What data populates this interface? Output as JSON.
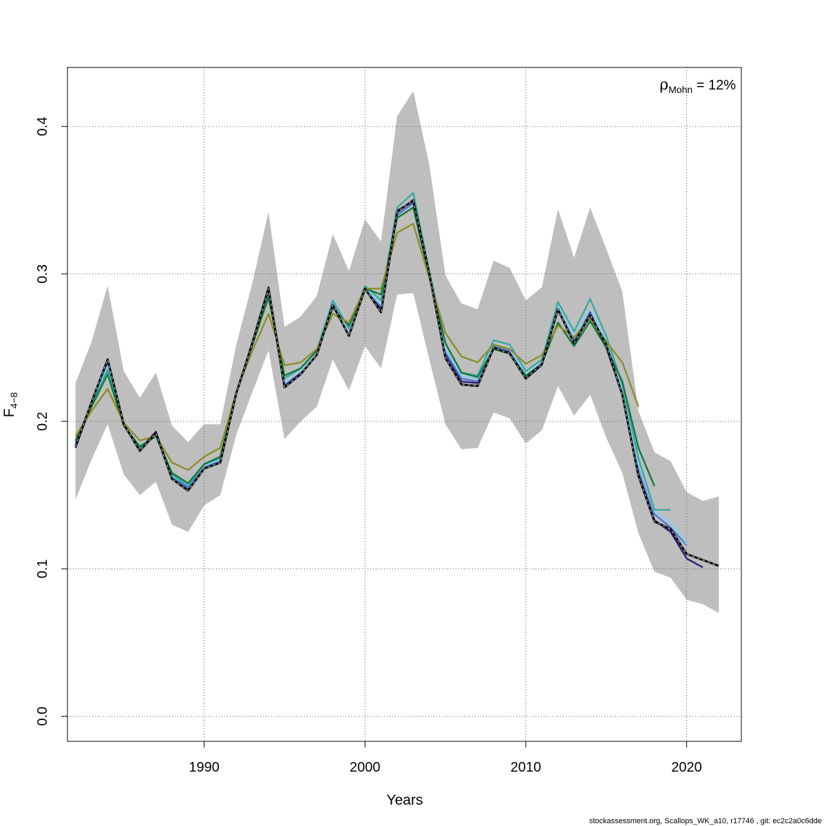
{
  "chart_data": {
    "type": "line",
    "xlabel": "Years",
    "ylabel_main": "F",
    "ylabel_sub": "4−8",
    "xlim": [
      1981.5,
      2023.4
    ],
    "ylim": [
      -0.017,
      0.44
    ],
    "x_ticks": [
      1990,
      2000,
      2010,
      2020
    ],
    "y_ticks": [
      0.0,
      0.1,
      0.2,
      0.3,
      0.4
    ],
    "y_tick_labels": [
      "0.0",
      "0.1",
      "0.2",
      "0.3",
      "0.4"
    ],
    "grid": true,
    "annotation": {
      "symbol": "ρ",
      "subscript": "Mohn",
      "text": " = 12%",
      "placement": "top-right"
    },
    "footer": "stockassessment.org, Scallops_WK_a10, r17746 , git: ec2c2a0c6dde",
    "band": {
      "color": "#bebebe",
      "x": [
        1982,
        1983,
        1984,
        1985,
        1986,
        1987,
        1988,
        1989,
        1990,
        1991,
        1992,
        1993,
        1994,
        1995,
        1996,
        1997,
        1998,
        1999,
        2000,
        2001,
        2002,
        2003,
        2004,
        2005,
        2006,
        2007,
        2008,
        2009,
        2010,
        2011,
        2012,
        2013,
        2014,
        2015,
        2016,
        2017,
        2018,
        2019,
        2020,
        2021,
        2022
      ],
      "upper": [
        0.226,
        0.254,
        0.292,
        0.234,
        0.216,
        0.233,
        0.197,
        0.186,
        0.198,
        0.198,
        0.252,
        0.294,
        0.342,
        0.264,
        0.271,
        0.285,
        0.327,
        0.302,
        0.337,
        0.322,
        0.407,
        0.424,
        0.374,
        0.299,
        0.28,
        0.276,
        0.309,
        0.304,
        0.282,
        0.291,
        0.344,
        0.311,
        0.345,
        0.317,
        0.288,
        0.207,
        0.179,
        0.173,
        0.152,
        0.146,
        0.149
      ],
      "lower": [
        0.147,
        0.174,
        0.198,
        0.164,
        0.15,
        0.159,
        0.13,
        0.125,
        0.143,
        0.15,
        0.191,
        0.22,
        0.248,
        0.188,
        0.2,
        0.21,
        0.242,
        0.221,
        0.251,
        0.236,
        0.286,
        0.287,
        0.242,
        0.198,
        0.181,
        0.182,
        0.206,
        0.202,
        0.185,
        0.194,
        0.224,
        0.204,
        0.218,
        0.189,
        0.165,
        0.124,
        0.098,
        0.094,
        0.079,
        0.076,
        0.07
      ]
    },
    "series": [
      {
        "color": "#000000",
        "dashed": true,
        "x": [
          1982,
          1983,
          1984,
          1985,
          1986,
          1987,
          1988,
          1989,
          1990,
          1991,
          1992,
          1993,
          1994,
          1995,
          1996,
          1997,
          1998,
          1999,
          2000,
          2001,
          2002,
          2003,
          2004,
          2005,
          2006,
          2007,
          2008,
          2009,
          2010,
          2011,
          2012,
          2013,
          2014,
          2015,
          2016,
          2017,
          2018,
          2019,
          2020,
          2021,
          2022
        ],
        "y": [
          0.183,
          0.213,
          0.242,
          0.198,
          0.18,
          0.192,
          0.161,
          0.153,
          0.168,
          0.172,
          0.219,
          0.253,
          0.29,
          0.223,
          0.232,
          0.245,
          0.279,
          0.258,
          0.29,
          0.274,
          0.342,
          0.35,
          0.3,
          0.243,
          0.225,
          0.224,
          0.25,
          0.246,
          0.229,
          0.239,
          0.276,
          0.253,
          0.272,
          0.252,
          0.218,
          0.163,
          0.132,
          0.127,
          0.11,
          0.106,
          0.102
        ]
      },
      {
        "color": "#2e1a78",
        "x": [
          1982,
          1983,
          1984,
          1985,
          1986,
          1987,
          1988,
          1989,
          1990,
          1991,
          1992,
          1993,
          1994,
          1995,
          1996,
          1997,
          1998,
          1999,
          2000,
          2001,
          2002,
          2003,
          2004,
          2005,
          2006,
          2007,
          2008,
          2009,
          2010,
          2011,
          2012,
          2013,
          2014,
          2015,
          2016,
          2017,
          2018,
          2019,
          2020,
          2021
        ],
        "y": [
          0.182,
          0.212,
          0.241,
          0.198,
          0.181,
          0.193,
          0.162,
          0.154,
          0.169,
          0.173,
          0.219,
          0.254,
          0.291,
          0.224,
          0.233,
          0.246,
          0.279,
          0.258,
          0.291,
          0.276,
          0.343,
          0.349,
          0.3,
          0.246,
          0.227,
          0.226,
          0.249,
          0.247,
          0.229,
          0.238,
          0.278,
          0.254,
          0.274,
          0.25,
          0.218,
          0.165,
          0.133,
          0.125,
          0.107,
          0.101
        ]
      },
      {
        "color": "#4a78d8",
        "x": [
          1982,
          1983,
          1984,
          1985,
          1986,
          1987,
          1988,
          1989,
          1990,
          1991,
          1992,
          1993,
          1994,
          1995,
          1996,
          1997,
          1998,
          1999,
          2000,
          2001,
          2002,
          2003,
          2004,
          2005,
          2006,
          2007,
          2008,
          2009,
          2010,
          2011,
          2012,
          2013,
          2014,
          2015,
          2016,
          2017,
          2018,
          2019,
          2020
        ],
        "y": [
          0.184,
          0.212,
          0.239,
          0.198,
          0.181,
          0.191,
          0.162,
          0.155,
          0.169,
          0.173,
          0.219,
          0.253,
          0.289,
          0.225,
          0.234,
          0.246,
          0.279,
          0.259,
          0.29,
          0.278,
          0.34,
          0.348,
          0.3,
          0.247,
          0.229,
          0.227,
          0.251,
          0.248,
          0.23,
          0.238,
          0.277,
          0.255,
          0.273,
          0.252,
          0.219,
          0.17,
          0.137,
          0.128,
          0.116
        ]
      },
      {
        "color": "#8fcde8",
        "x": [
          1982,
          1983,
          1984,
          1985,
          1986,
          1987,
          1988,
          1989,
          1990,
          1991,
          1992,
          1993,
          1994,
          1995,
          1996,
          1997,
          1998,
          1999,
          2000,
          2001,
          2002,
          2003,
          2004,
          2005,
          2006,
          2007,
          2008,
          2009,
          2010,
          2011,
          2012,
          2013,
          2014,
          2015,
          2016,
          2017,
          2018,
          2019,
          2020
        ],
        "y": [
          0.185,
          0.211,
          0.237,
          0.199,
          0.182,
          0.19,
          0.163,
          0.157,
          0.17,
          0.174,
          0.219,
          0.252,
          0.288,
          0.226,
          0.234,
          0.246,
          0.28,
          0.26,
          0.291,
          0.279,
          0.342,
          0.35,
          0.301,
          0.249,
          0.231,
          0.229,
          0.252,
          0.249,
          0.232,
          0.24,
          0.278,
          0.257,
          0.276,
          0.255,
          0.222,
          0.171,
          0.139,
          0.132,
          0.117
        ]
      },
      {
        "color": "#37a9a4",
        "x": [
          1982,
          1983,
          1984,
          1985,
          1986,
          1987,
          1988,
          1989,
          1990,
          1991,
          1992,
          1993,
          1994,
          1995,
          1996,
          1997,
          1998,
          1999,
          2000,
          2001,
          2002,
          2003,
          2004,
          2005,
          2006,
          2007,
          2008,
          2009,
          2010,
          2011,
          2012,
          2013,
          2014,
          2015,
          2016,
          2017,
          2018,
          2019
        ],
        "y": [
          0.186,
          0.211,
          0.235,
          0.198,
          0.182,
          0.19,
          0.164,
          0.156,
          0.171,
          0.175,
          0.22,
          0.253,
          0.287,
          0.229,
          0.236,
          0.248,
          0.282,
          0.263,
          0.292,
          0.282,
          0.345,
          0.355,
          0.302,
          0.253,
          0.233,
          0.231,
          0.255,
          0.252,
          0.234,
          0.242,
          0.281,
          0.261,
          0.283,
          0.258,
          0.225,
          0.175,
          0.14,
          0.14
        ]
      },
      {
        "color": "#0f7a3a",
        "x": [
          1982,
          1983,
          1984,
          1985,
          1986,
          1987,
          1988,
          1989,
          1990,
          1991,
          1992,
          1993,
          1994,
          1995,
          1996,
          1997,
          1998,
          1999,
          2000,
          2001,
          2002,
          2003,
          2004,
          2005,
          2006,
          2007,
          2008,
          2009,
          2010,
          2011,
          2012,
          2013,
          2014,
          2015,
          2016,
          2017,
          2018
        ],
        "y": [
          0.187,
          0.21,
          0.232,
          0.197,
          0.183,
          0.19,
          0.165,
          0.158,
          0.171,
          0.176,
          0.219,
          0.252,
          0.284,
          0.231,
          0.236,
          0.248,
          0.277,
          0.265,
          0.29,
          0.286,
          0.338,
          0.345,
          0.298,
          0.253,
          0.233,
          0.23,
          0.249,
          0.246,
          0.231,
          0.239,
          0.267,
          0.251,
          0.268,
          0.25,
          0.227,
          0.182,
          0.156
        ]
      },
      {
        "color": "#8d8d2a",
        "x": [
          1982,
          1983,
          1984,
          1985,
          1986,
          1987,
          1988,
          1989,
          1990,
          1991,
          1992,
          1993,
          1994,
          1995,
          1996,
          1997,
          1998,
          1999,
          2000,
          2001,
          2002,
          2003,
          2004,
          2005,
          2006,
          2007,
          2008,
          2009,
          2010,
          2011,
          2012,
          2013,
          2014,
          2015,
          2016,
          2017
        ],
        "y": [
          0.19,
          0.207,
          0.222,
          0.199,
          0.187,
          0.19,
          0.172,
          0.167,
          0.176,
          0.182,
          0.22,
          0.248,
          0.273,
          0.238,
          0.24,
          0.249,
          0.273,
          0.267,
          0.29,
          0.29,
          0.328,
          0.334,
          0.297,
          0.26,
          0.244,
          0.24,
          0.252,
          0.249,
          0.239,
          0.245,
          0.265,
          0.257,
          0.27,
          0.254,
          0.24,
          0.21
        ]
      }
    ]
  }
}
